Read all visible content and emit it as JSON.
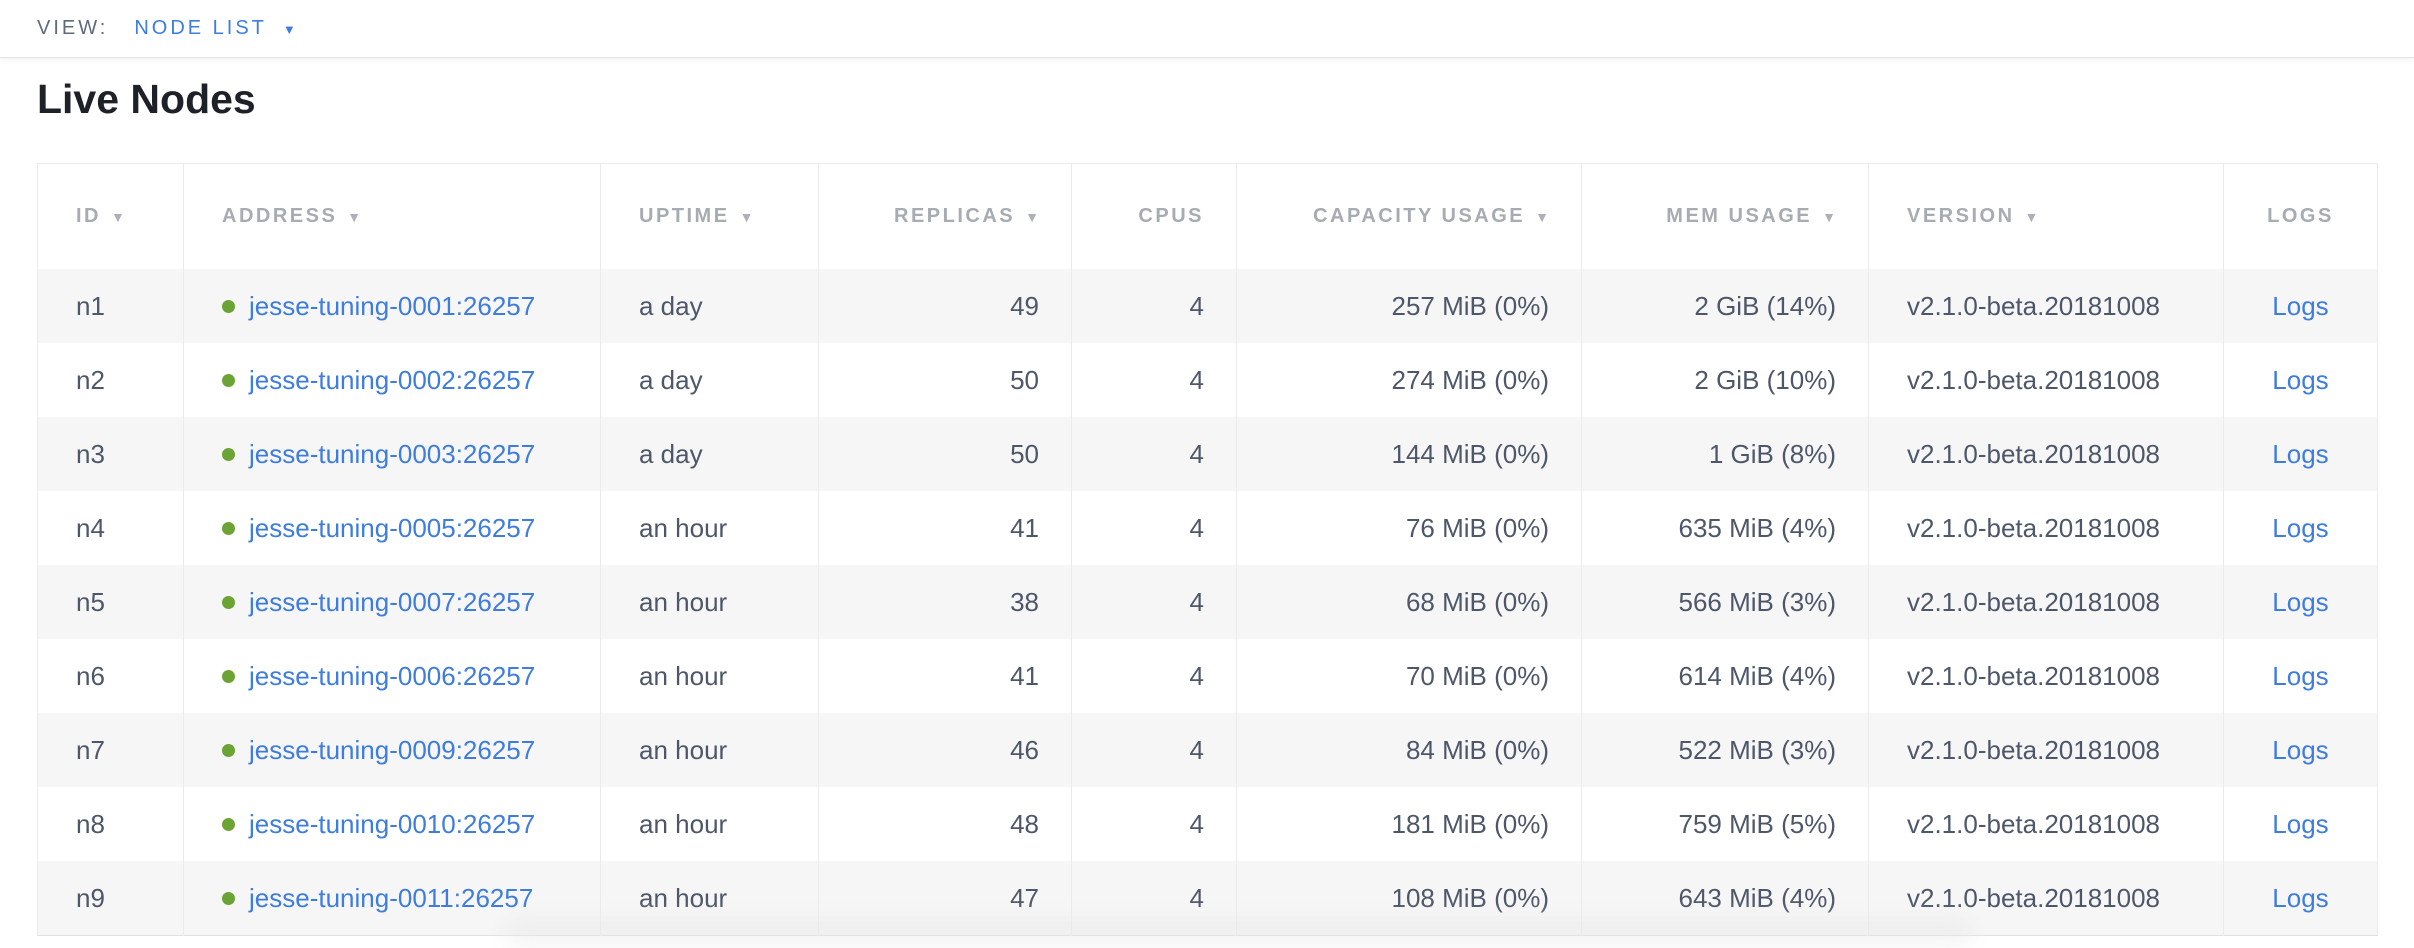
{
  "toolbar": {
    "view_label": "VIEW:",
    "view_value": "NODE LIST"
  },
  "page": {
    "title": "Live Nodes"
  },
  "icons": {
    "dropdown_caret": "▼",
    "sort_desc": "▼"
  },
  "colors": {
    "link_blue": "#3e7cdd",
    "accent_blue": "#3d7ce0",
    "node_live_green": "#6ba434",
    "header_gray": "#a7abb2",
    "body_slate": "#4e5769",
    "row_stripe": "#f6f6f6"
  },
  "table": {
    "columns": [
      {
        "key": "id",
        "label": "ID",
        "sortable": true,
        "align": "al"
      },
      {
        "key": "address",
        "label": "ADDRESS",
        "sortable": true,
        "align": "al"
      },
      {
        "key": "uptime",
        "label": "UPTIME",
        "sortable": true,
        "align": "al"
      },
      {
        "key": "replicas",
        "label": "REPLICAS",
        "sortable": true,
        "align": "ar"
      },
      {
        "key": "cpus",
        "label": "CPUS",
        "sortable": false,
        "align": "ar"
      },
      {
        "key": "capacity",
        "label": "CAPACITY USAGE",
        "sortable": true,
        "align": "ar"
      },
      {
        "key": "mem",
        "label": "MEM USAGE",
        "sortable": true,
        "align": "ar"
      },
      {
        "key": "version",
        "label": "VERSION",
        "sortable": true,
        "align": "al"
      },
      {
        "key": "logs",
        "label": "LOGS",
        "sortable": false,
        "align": "ac"
      }
    ],
    "rows": [
      {
        "id": "n1",
        "address": "jesse-tuning-0001:26257",
        "status": "live",
        "uptime": "a day",
        "replicas": "49",
        "cpus": "4",
        "capacity": "257 MiB (0%)",
        "mem": "2 GiB (14%)",
        "version": "v2.1.0-beta.20181008",
        "logs": "Logs"
      },
      {
        "id": "n2",
        "address": "jesse-tuning-0002:26257",
        "status": "live",
        "uptime": "a day",
        "replicas": "50",
        "cpus": "4",
        "capacity": "274 MiB (0%)",
        "mem": "2 GiB (10%)",
        "version": "v2.1.0-beta.20181008",
        "logs": "Logs"
      },
      {
        "id": "n3",
        "address": "jesse-tuning-0003:26257",
        "status": "live",
        "uptime": "a day",
        "replicas": "50",
        "cpus": "4",
        "capacity": "144 MiB (0%)",
        "mem": "1 GiB (8%)",
        "version": "v2.1.0-beta.20181008",
        "logs": "Logs"
      },
      {
        "id": "n4",
        "address": "jesse-tuning-0005:26257",
        "status": "live",
        "uptime": "an hour",
        "replicas": "41",
        "cpus": "4",
        "capacity": "76 MiB (0%)",
        "mem": "635 MiB (4%)",
        "version": "v2.1.0-beta.20181008",
        "logs": "Logs"
      },
      {
        "id": "n5",
        "address": "jesse-tuning-0007:26257",
        "status": "live",
        "uptime": "an hour",
        "replicas": "38",
        "cpus": "4",
        "capacity": "68 MiB (0%)",
        "mem": "566 MiB (3%)",
        "version": "v2.1.0-beta.20181008",
        "logs": "Logs"
      },
      {
        "id": "n6",
        "address": "jesse-tuning-0006:26257",
        "status": "live",
        "uptime": "an hour",
        "replicas": "41",
        "cpus": "4",
        "capacity": "70 MiB (0%)",
        "mem": "614 MiB (4%)",
        "version": "v2.1.0-beta.20181008",
        "logs": "Logs"
      },
      {
        "id": "n7",
        "address": "jesse-tuning-0009:26257",
        "status": "live",
        "uptime": "an hour",
        "replicas": "46",
        "cpus": "4",
        "capacity": "84 MiB (0%)",
        "mem": "522 MiB (3%)",
        "version": "v2.1.0-beta.20181008",
        "logs": "Logs"
      },
      {
        "id": "n8",
        "address": "jesse-tuning-0010:26257",
        "status": "live",
        "uptime": "an hour",
        "replicas": "48",
        "cpus": "4",
        "capacity": "181 MiB (0%)",
        "mem": "759 MiB (5%)",
        "version": "v2.1.0-beta.20181008",
        "logs": "Logs"
      },
      {
        "id": "n9",
        "address": "jesse-tuning-0011:26257",
        "status": "live",
        "uptime": "an hour",
        "replicas": "47",
        "cpus": "4",
        "capacity": "108 MiB (0%)",
        "mem": "643 MiB (4%)",
        "version": "v2.1.0-beta.20181008",
        "logs": "Logs"
      }
    ]
  }
}
